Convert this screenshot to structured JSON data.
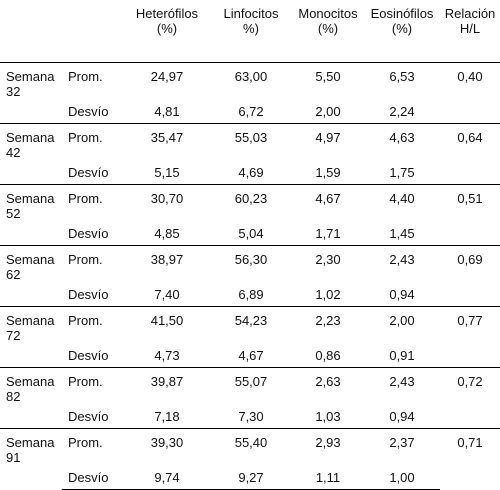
{
  "columns": {
    "heterofilos": {
      "line1": "Heterófilos",
      "line2": "(%)"
    },
    "linfocitos": {
      "line1": "Linfocitos",
      "line2": "%)"
    },
    "monocitos": {
      "line1": "Monocitos",
      "line2": "(%)"
    },
    "eosinofilos": {
      "line1": "Eosinófilos",
      "line2": "(%)"
    },
    "relacion": {
      "line1": "Relación",
      "line2": "H/L"
    }
  },
  "rows": [
    {
      "week_line1": "Semana",
      "week_line2": "32",
      "prom_label": "Prom.",
      "desvio_label": "Desvío",
      "prom": [
        "24,97",
        "63,00",
        "5,50",
        "6,53"
      ],
      "ratio": "0,40",
      "desvio": [
        "4,81",
        "6,72",
        "2,00",
        "2,24"
      ]
    },
    {
      "week_line1": "Semana",
      "week_line2": "42",
      "prom_label": "Prom.",
      "desvio_label": "Desvío",
      "prom": [
        "35,47",
        "55,03",
        "4,97",
        "4,63"
      ],
      "ratio": "0,64",
      "desvio": [
        "5,15",
        "4,69",
        "1,59",
        "1,75"
      ]
    },
    {
      "week_line1": "Semana",
      "week_line2": "52",
      "prom_label": "Prom.",
      "desvio_label": "Desvío",
      "prom": [
        "30,70",
        "60,23",
        "4,67",
        "4,40"
      ],
      "ratio": "0,51",
      "desvio": [
        "4,85",
        "5,04",
        "1,71",
        "1,45"
      ]
    },
    {
      "week_line1": "Semana",
      "week_line2": "62",
      "prom_label": "Prom.",
      "desvio_label": "Desvío",
      "prom": [
        "38,97",
        "56,30",
        "2,30",
        "2,43"
      ],
      "ratio": "0,69",
      "desvio": [
        "7,40",
        "6,89",
        "1,02",
        "0,94"
      ]
    },
    {
      "week_line1": "Semana",
      "week_line2": "72",
      "prom_label": "Prom.",
      "desvio_label": "Desvío",
      "prom": [
        "41,50",
        "54,23",
        "2,23",
        "2,00"
      ],
      "ratio": "0,77",
      "desvio": [
        "4,73",
        "4,67",
        "0,86",
        "0,91"
      ]
    },
    {
      "week_line1": "Semana",
      "week_line2": "82",
      "prom_label": "Prom.",
      "desvio_label": "Desvío",
      "prom": [
        "39,87",
        "55,07",
        "2,63",
        "2,43"
      ],
      "ratio": "0,72",
      "desvio": [
        "7,18",
        "7,30",
        "1,03",
        "0,94"
      ]
    },
    {
      "week_line1": "Semana",
      "week_line2": "91",
      "prom_label": "Prom.",
      "desvio_label": "Desvío",
      "prom": [
        "39,30",
        "55,40",
        "2,93",
        "2,37"
      ],
      "ratio": "0,71",
      "desvio": [
        "9,74",
        "9,27",
        "1,11",
        "1,00"
      ]
    }
  ]
}
